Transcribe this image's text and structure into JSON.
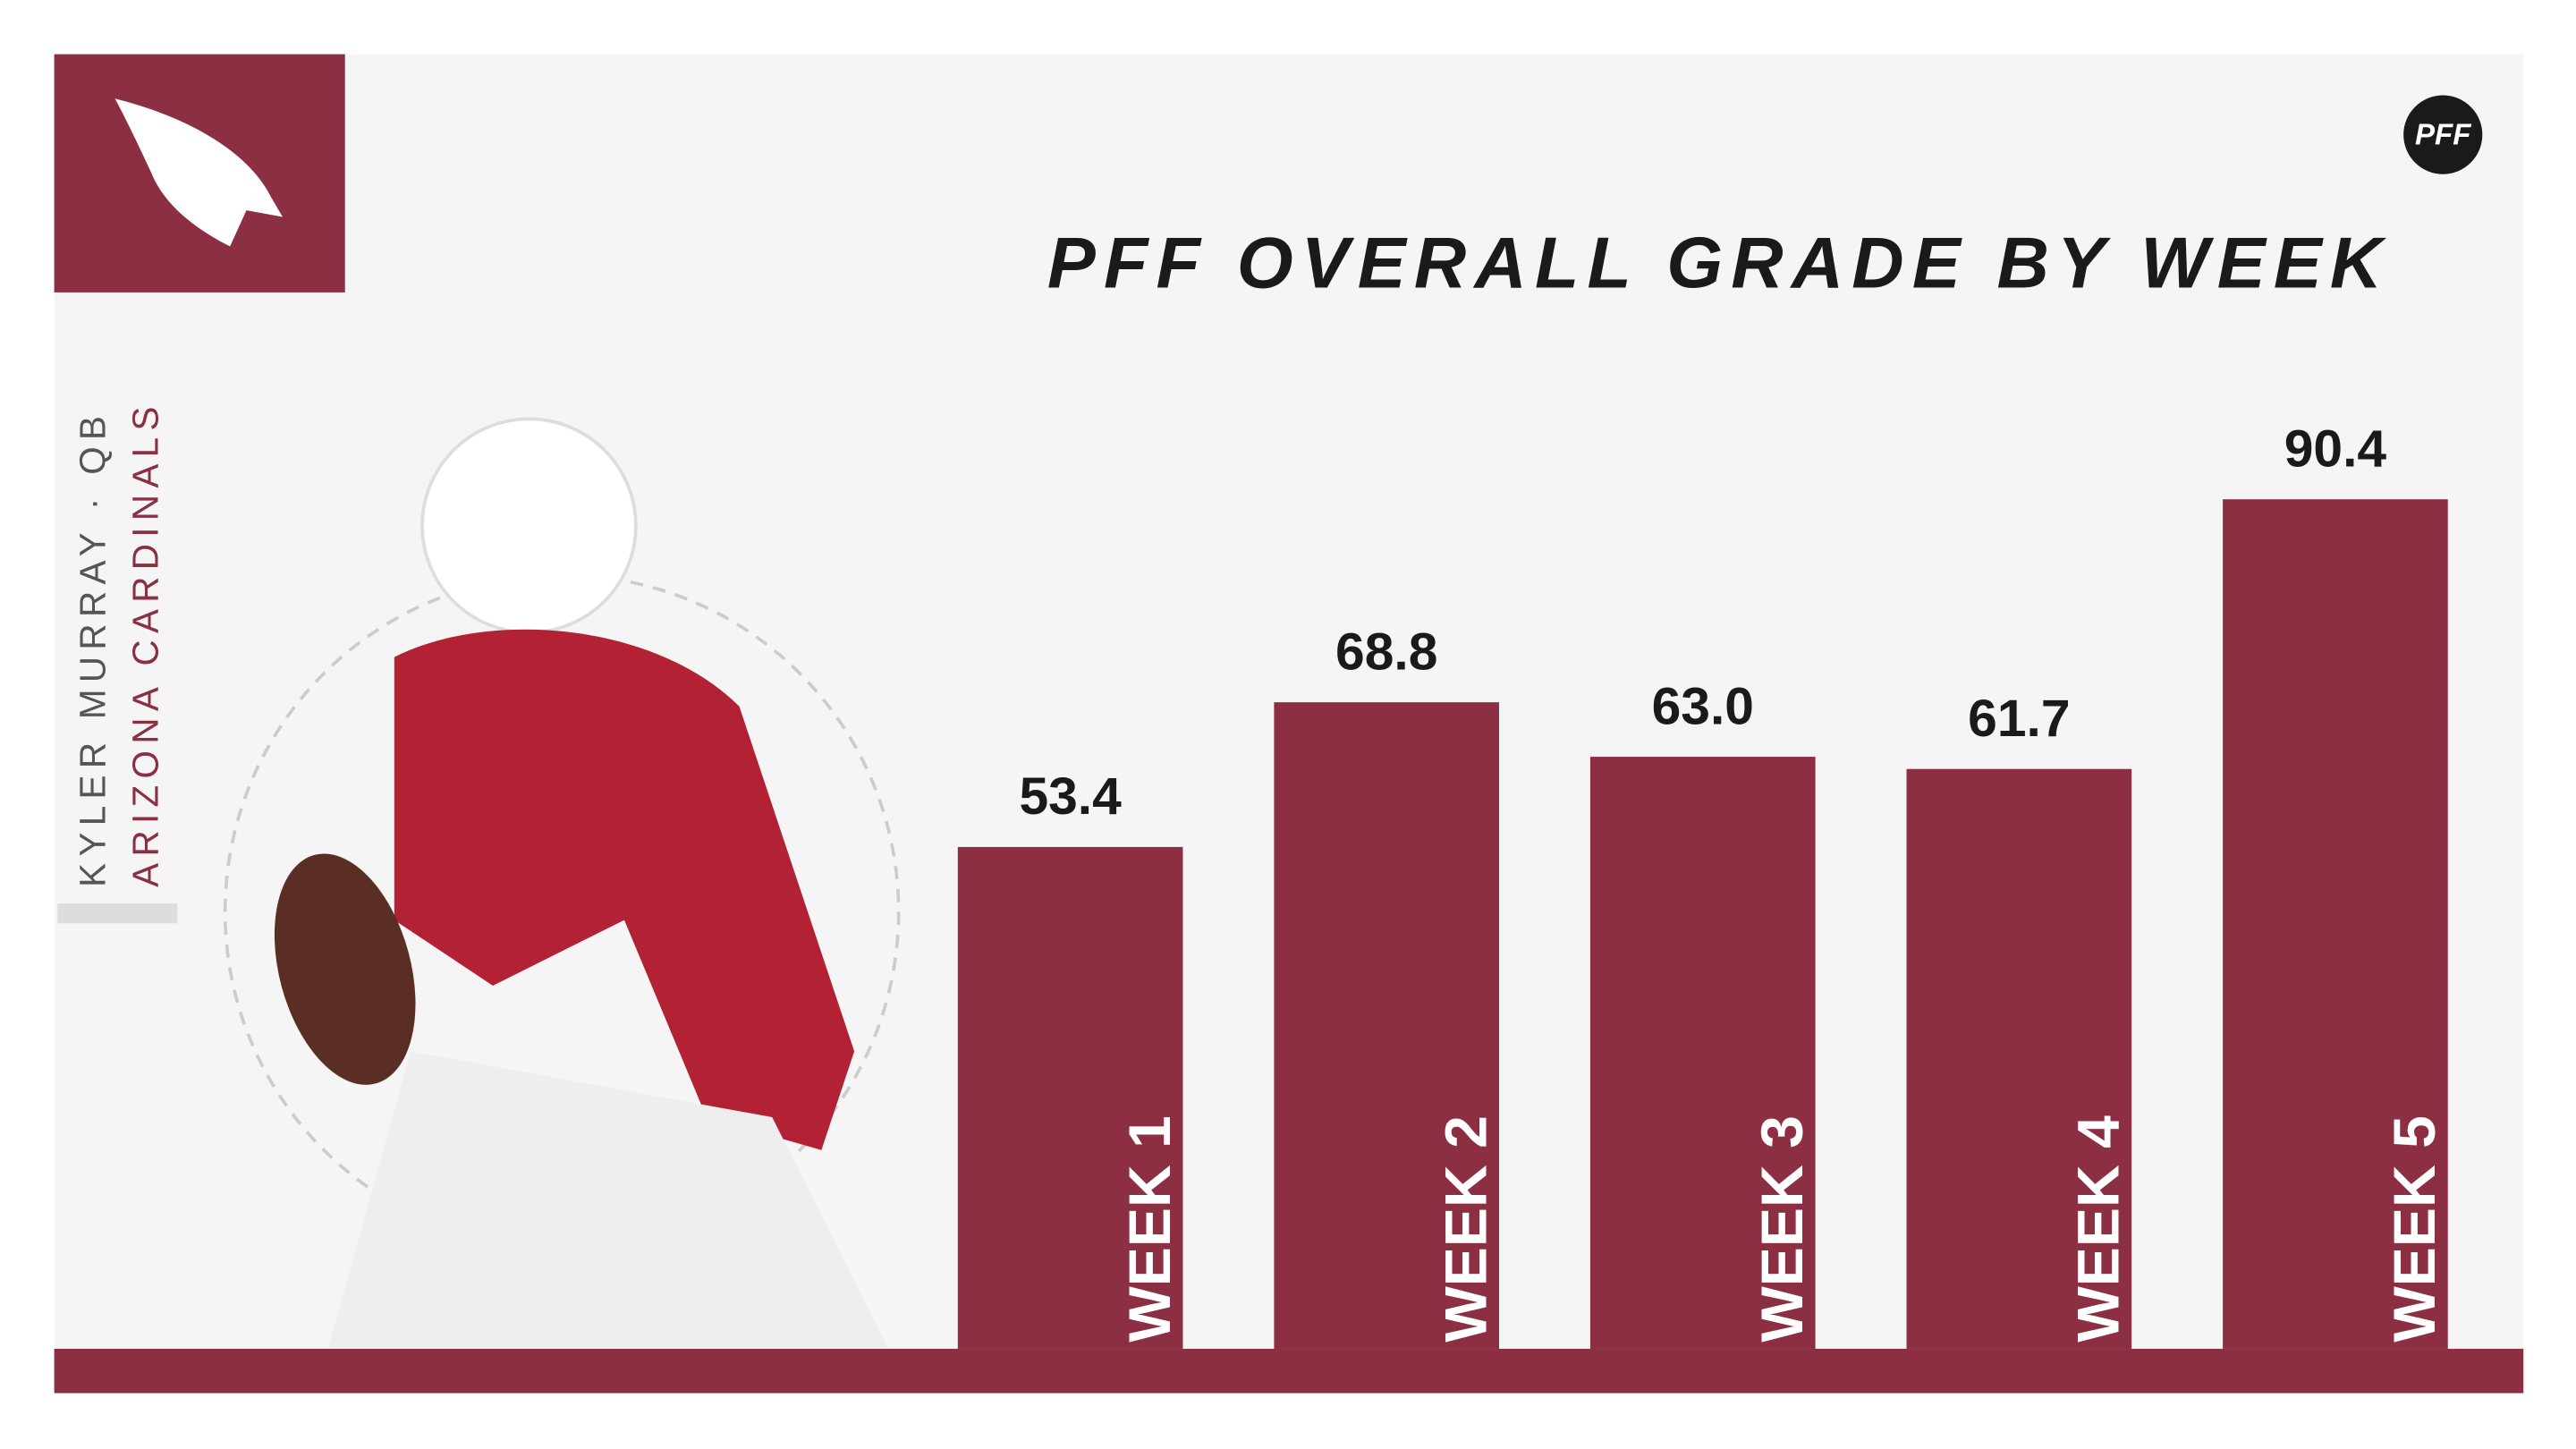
{
  "chart_data": {
    "type": "bar",
    "title": "PFF OVERALL GRADE BY WEEK",
    "player": "KYLER MURRAY · QB",
    "team": "ARIZONA CARDINALS",
    "brand": "PFF",
    "categories": [
      "WEEK 1",
      "WEEK 2",
      "WEEK 3",
      "WEEK 4",
      "WEEK 5"
    ],
    "values": [
      53.4,
      68.8,
      63.0,
      61.7,
      90.4
    ],
    "value_labels": [
      "53.4",
      "68.8",
      "63.0",
      "61.7",
      "90.4"
    ],
    "color": "#8c2f43",
    "ylim": [
      0,
      100
    ]
  }
}
